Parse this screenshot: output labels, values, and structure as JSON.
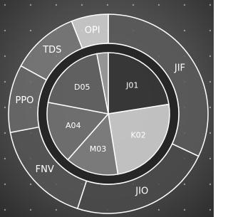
{
  "chart_data": [
    {
      "type": "donut",
      "categories": [
        "JIF",
        "JIO",
        "FNV",
        "PPO",
        "TDS",
        "OPI"
      ],
      "values": [
        32,
        23,
        17,
        11,
        11,
        6
      ],
      "colors": [
        "#5a5a5a",
        "#4a4a4a",
        "#555555",
        "#6a6a6a",
        "#7a7a7a",
        "#d6d6d6"
      ]
    },
    {
      "type": "pie",
      "categories": [
        "J01",
        "K02",
        "M03",
        "A04",
        "D05",
        null
      ],
      "values": [
        22.5,
        25,
        14,
        16.5,
        19,
        3
      ],
      "colors": [
        "#3a3a3a",
        "#dcdcdc",
        "#8a8a8a",
        "#7a7a7a",
        "#6a6a6a",
        "#a8a8a8"
      ]
    }
  ]
}
